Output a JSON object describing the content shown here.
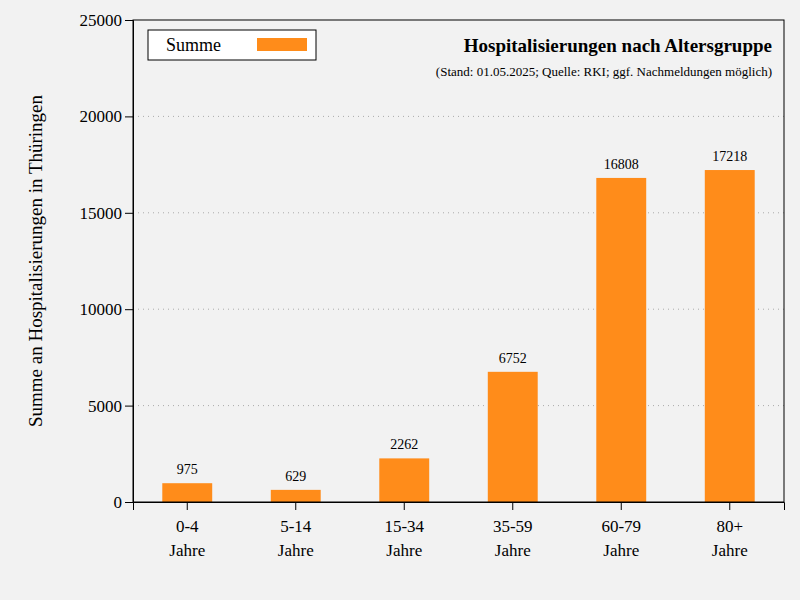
{
  "chart_data": {
    "type": "bar",
    "title": "Hospitalisierungen nach Altersgruppe",
    "subtitle": "(Stand: 01.05.2025; Quelle: RKI; ggf. Nachmeldungen möglich)",
    "y_label": "Summe an Hospitalisierungen in Thüringen",
    "categories": [
      "0-4 Jahre",
      "5-14 Jahre",
      "15-34 Jahre",
      "35-59 Jahre",
      "60-79 Jahre",
      "80+ Jahre"
    ],
    "series": [
      {
        "name": "Summe",
        "color": "#ff8c1a",
        "values": [
          975,
          629,
          2262,
          6752,
          16808,
          17218
        ]
      }
    ],
    "ylim": [
      0,
      25000
    ],
    "yticks": [
      0,
      5000,
      10000,
      15000,
      20000,
      25000
    ],
    "grid": true,
    "legend": "top-left",
    "data_labels": true
  }
}
